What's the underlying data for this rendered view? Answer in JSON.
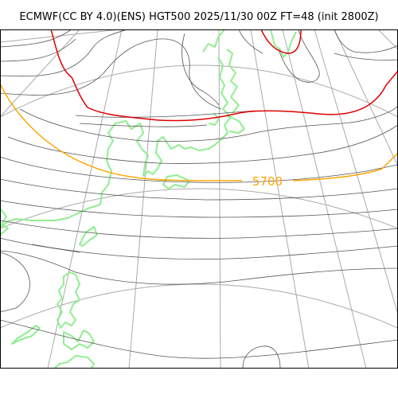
{
  "title": "ECMWF(CC BY 4.0)(ENS) HGT500 2025/11/30 00Z FT=48 (init 2800Z)",
  "contour_labels": {
    "label_5700": "5700"
  },
  "colors": {
    "contour_5700": "#ffa500",
    "contour_5400": "#e00000",
    "contour_other": "#555555",
    "graticule": "#aaaaaa",
    "coastline": "#90ee90",
    "frame": "#000000"
  }
}
